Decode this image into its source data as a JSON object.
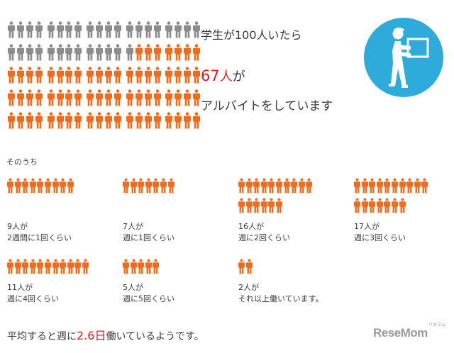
{
  "headline": {
    "line1": "学生が100人いたら",
    "count": "67",
    "unit": "人",
    "suffix": "が",
    "line3": "アルバイトをしています"
  },
  "icon_grid": {
    "total": 100,
    "highlighted": 67,
    "gray_color": "#8c8c8c",
    "orange_color": "#f26a1b"
  },
  "badge": {
    "icon": "worker-carrying-box-icon",
    "color": "#2eaadb"
  },
  "breakdown_title": "そのうち",
  "groups": [
    {
      "count": 9,
      "line1": "9人が",
      "line2": "2週間に1回くらい"
    },
    {
      "count": 7,
      "line1": "7人が",
      "line2": "週に1回くらい"
    },
    {
      "count": 16,
      "line1": "16人が",
      "line2": "週に2回くらい"
    },
    {
      "count": 17,
      "line1": "17人が",
      "line2": "週に3回くらい"
    },
    {
      "count": 11,
      "line1": "11人が",
      "line2": "週に4回くらい"
    },
    {
      "count": 5,
      "line1": "5人が",
      "line2": "週に5回くらい"
    },
    {
      "count": 2,
      "line1": "2人が",
      "line2": "それ以上働いています。"
    }
  ],
  "summary": {
    "prefix": "平均すると週に",
    "value": "2.6日",
    "suffix": "働いているようです。"
  },
  "logo": {
    "text": "ReseMom",
    "kana": "リセマム"
  }
}
